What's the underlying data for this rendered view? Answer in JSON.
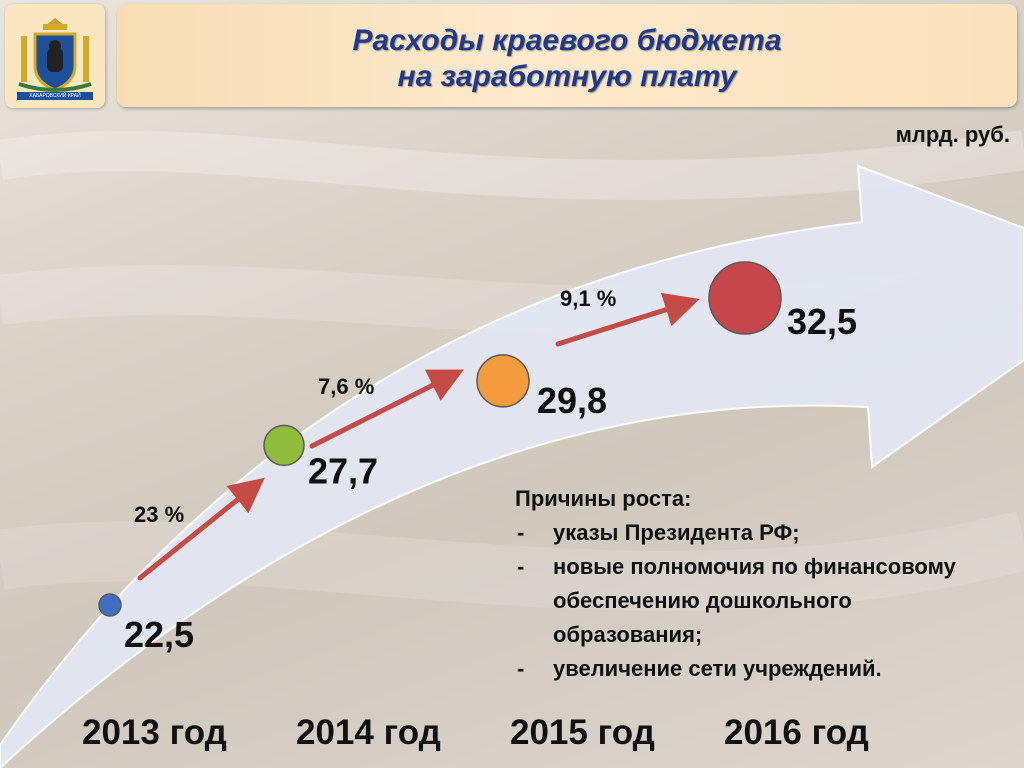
{
  "header": {
    "title_line1": "Расходы краевого бюджета",
    "title_line2": "на заработную плату",
    "logo_caption": "ХАБАРОВСКИЙ КРАЙ"
  },
  "unit": "млрд. руб.",
  "chart_data": {
    "type": "line",
    "categories": [
      "2013 год",
      "2014 год",
      "2015 год",
      "2016 год"
    ],
    "values": [
      22.5,
      27.7,
      29.8,
      32.5
    ],
    "value_labels": [
      "22,5",
      "27,7",
      "29,8",
      "32,5"
    ],
    "growth_labels": [
      "23 %",
      "7,6 %",
      "9,1 %"
    ],
    "marker_colors": [
      "#3f6fc4",
      "#8fbc3b",
      "#f39b3d",
      "#c8474c"
    ],
    "arrow_color": "#c64a45",
    "band_color": "#e3e7f2"
  },
  "reasons": {
    "heading": "Причины роста:",
    "items": [
      "указы Президента РФ;",
      "новые полномочия по финансовому обеспечению дошкольного образования;",
      "увеличение сети учреждений."
    ]
  }
}
